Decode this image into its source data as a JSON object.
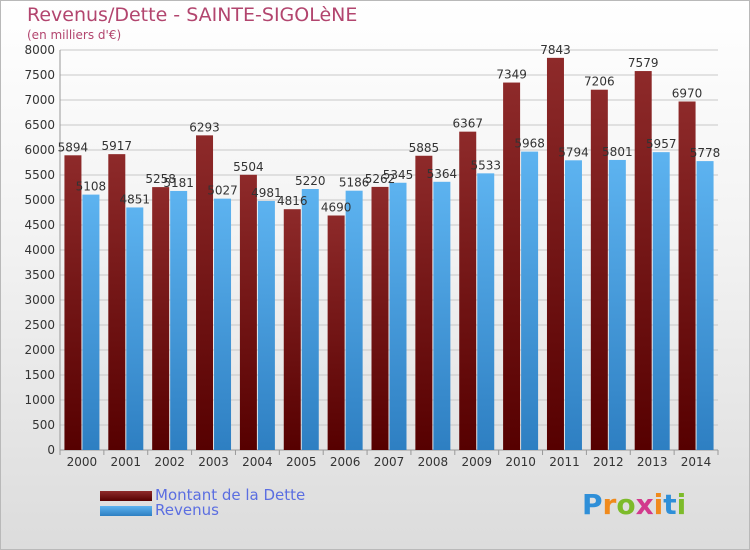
{
  "header": {
    "title": "Revenus/Dette - SAINTE-SIGOLèNE",
    "subtitle": "(en milliers d'€)"
  },
  "legend": [
    {
      "label": "Montant de la Dette",
      "color": "#7a1818"
    },
    {
      "label": "Revenus",
      "color": "#4fa3e3"
    }
  ],
  "logo": {
    "text": "Proxiti"
  },
  "colors": {
    "title": "#b2456e",
    "debt": "#7a1818",
    "revenue": "#4fa3e3",
    "axis_text": "#333333",
    "value_text": "#333333"
  },
  "chart_data": {
    "type": "bar",
    "title": "Revenus/Dette - SAINTE-SIGOLèNE",
    "subtitle": "(en milliers d'€)",
    "categories": [
      "2000",
      "2001",
      "2002",
      "2003",
      "2004",
      "2005",
      "2006",
      "2007",
      "2008",
      "2009",
      "2010",
      "2011",
      "2012",
      "2013",
      "2014"
    ],
    "series": [
      {
        "name": "Montant de la Dette",
        "values": [
          5894,
          5917,
          5258,
          6293,
          5504,
          4816,
          4690,
          5262,
          5885,
          6367,
          7349,
          7843,
          7206,
          7579,
          6970
        ]
      },
      {
        "name": "Revenus",
        "values": [
          5108,
          4851,
          5181,
          5027,
          4981,
          5220,
          5186,
          5345,
          5364,
          5533,
          5968,
          5794,
          5801,
          5957,
          5778
        ]
      }
    ],
    "ylim": [
      0,
      8000
    ],
    "yticks": [
      0,
      500,
      1000,
      1500,
      2000,
      2500,
      3000,
      3500,
      4000,
      4500,
      5000,
      5500,
      6000,
      6500,
      7000,
      7500,
      8000
    ],
    "grid": true,
    "legend_position": "bottom-left"
  }
}
